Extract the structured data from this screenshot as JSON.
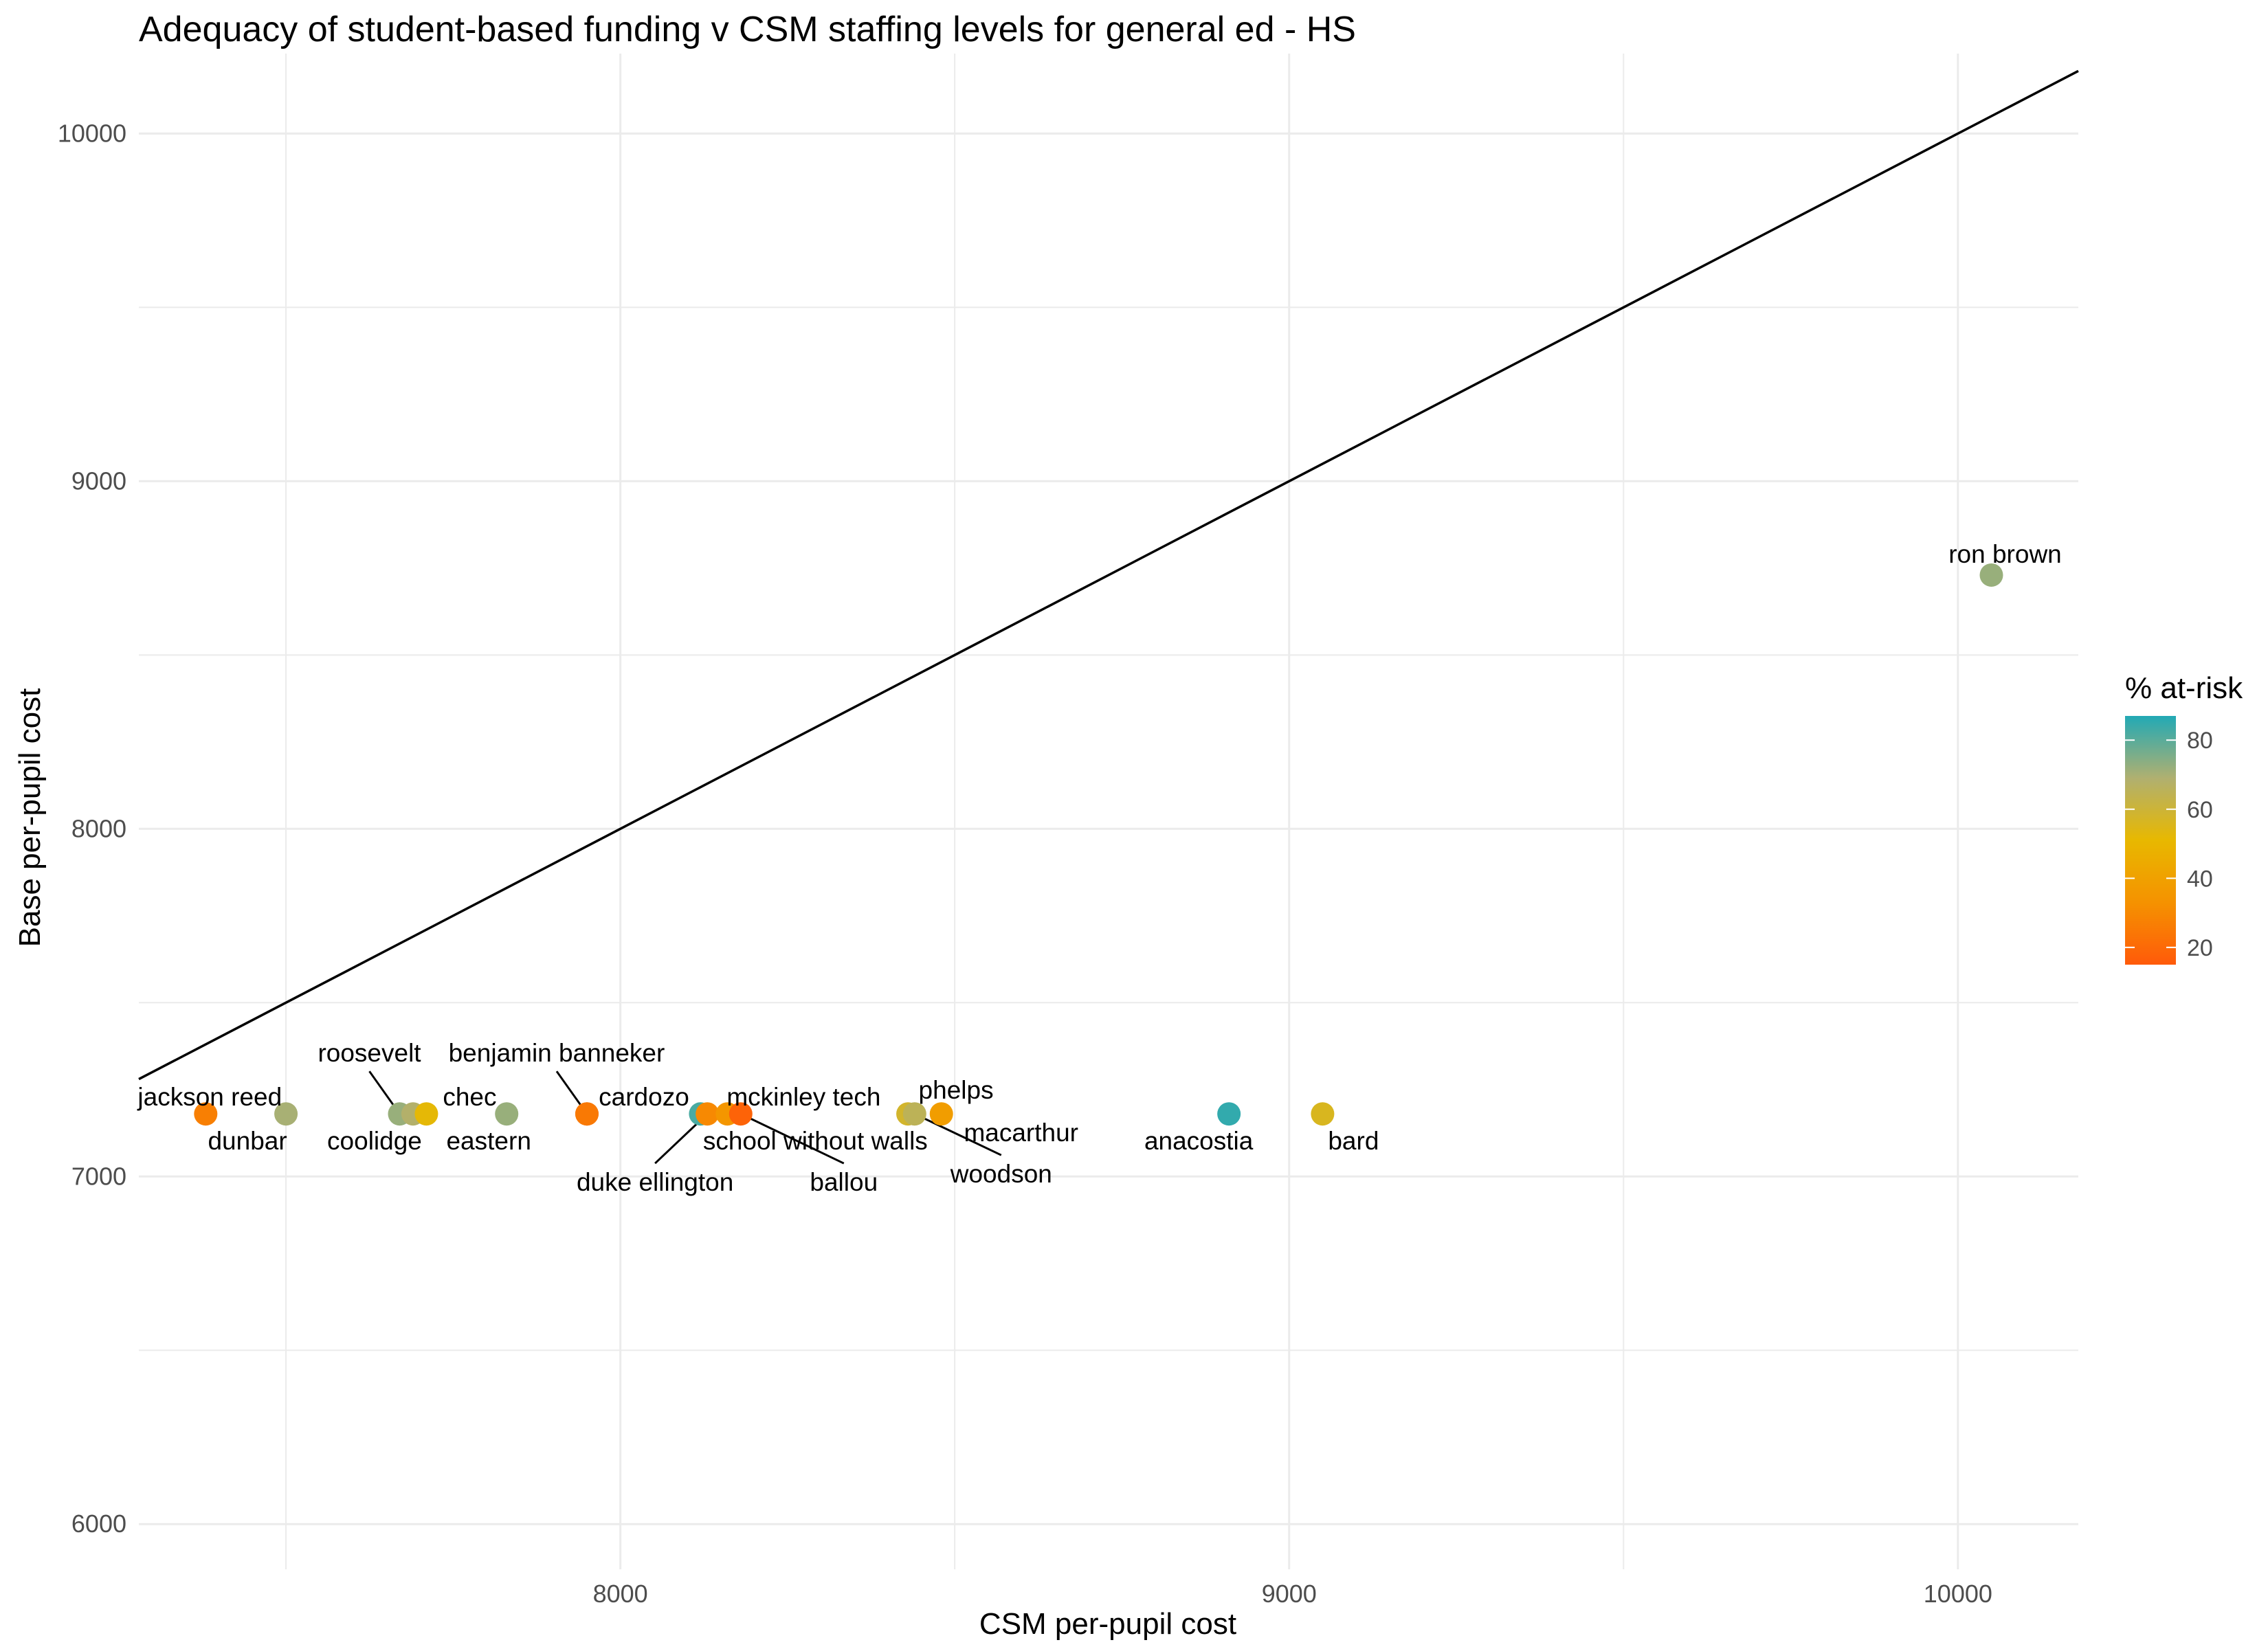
{
  "chart_data": {
    "type": "scatter",
    "title": "Adequacy of student-based funding v CSM staffing levels for general ed - HS",
    "xlabel": "CSM per-pupil cost",
    "ylabel": "Base per-pupil cost",
    "xlim": [
      7280,
      10180
    ],
    "ylim": [
      5870,
      10230
    ],
    "x_ticks": [
      8000,
      9000,
      10000
    ],
    "y_ticks": [
      6000,
      7000,
      8000,
      9000,
      10000
    ],
    "grid": true,
    "reference_line": "y = x",
    "color_scale": {
      "title": "% at-risk",
      "min": 15,
      "max": 87,
      "ticks": [
        20,
        40,
        60,
        80
      ],
      "stops": [
        "#ff5a0a",
        "#f59200",
        "#e8b800",
        "#b0b070",
        "#22a9b5"
      ]
    },
    "points": [
      {
        "label": "jackson reed",
        "x": 7380,
        "y": 7180,
        "at_risk": 27
      },
      {
        "label": "dunbar",
        "x": 7500,
        "y": 7180,
        "at_risk": 70
      },
      {
        "label": "roosevelt",
        "x": 7670,
        "y": 7180,
        "at_risk": 72
      },
      {
        "label": "coolidge",
        "x": 7690,
        "y": 7180,
        "at_risk": 68
      },
      {
        "label": "chec",
        "x": 7710,
        "y": 7180,
        "at_risk": 52
      },
      {
        "label": "eastern",
        "x": 7830,
        "y": 7180,
        "at_risk": 72
      },
      {
        "label": "benjamin banneker",
        "x": 7950,
        "y": 7180,
        "at_risk": 22
      },
      {
        "label": "cardozo",
        "x": 7950,
        "y": 7180,
        "at_risk": 25
      },
      {
        "label": "mckinley tech",
        "x": 8120,
        "y": 7180,
        "at_risk": 82
      },
      {
        "label": "duke ellington",
        "x": 8130,
        "y": 7180,
        "at_risk": 30
      },
      {
        "label": "school without walls",
        "x": 8160,
        "y": 7180,
        "at_risk": 35
      },
      {
        "label": "ballou",
        "x": 8180,
        "y": 7180,
        "at_risk": 18
      },
      {
        "label": "phelps",
        "x": 8430,
        "y": 7180,
        "at_risk": 58
      },
      {
        "label": "woodson",
        "x": 8440,
        "y": 7180,
        "at_risk": 65
      },
      {
        "label": "macarthur",
        "x": 8480,
        "y": 7180,
        "at_risk": 38
      },
      {
        "label": "anacostia",
        "x": 8910,
        "y": 7180,
        "at_risk": 85
      },
      {
        "label": "bard",
        "x": 9050,
        "y": 7180,
        "at_risk": 56
      },
      {
        "label": "ron brown",
        "x": 10050,
        "y": 8730,
        "at_risk": 72
      }
    ]
  }
}
